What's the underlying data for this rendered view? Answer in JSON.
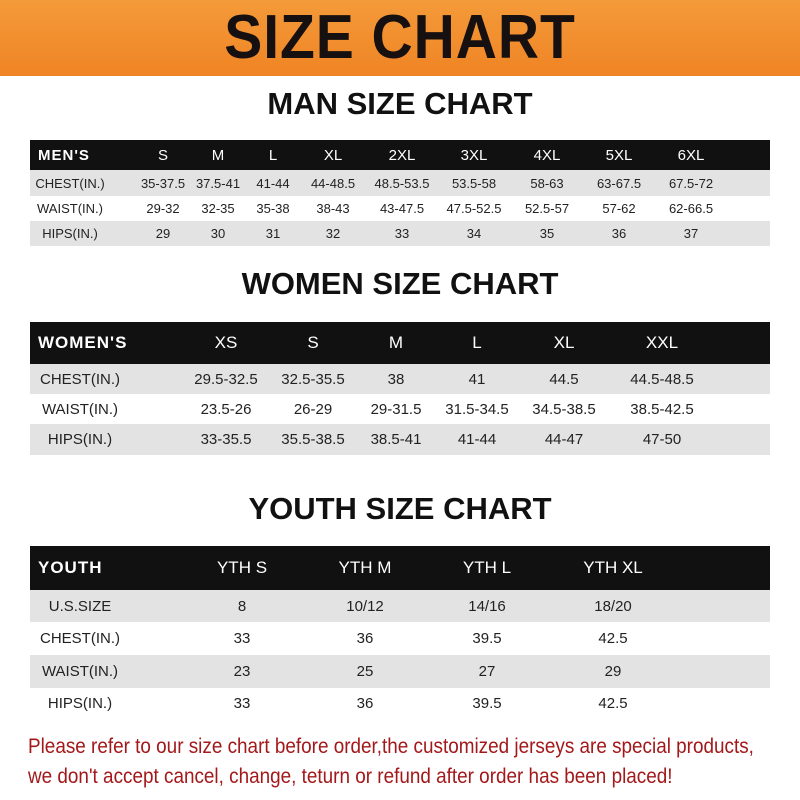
{
  "banner": {
    "title": "SIZE CHART",
    "color": "#ef8a2c"
  },
  "men": {
    "title": "MAN SIZE CHART",
    "header": [
      "MEN'S",
      "S",
      "M",
      "L",
      "XL",
      "2XL",
      "3XL",
      "4XL",
      "5XL",
      "6XL"
    ],
    "rows": [
      [
        "CHEST(IN.)",
        "35-37.5",
        "37.5-41",
        "41-44",
        "44-48.5",
        "48.5-53.5",
        "53.5-58",
        "58-63",
        "63-67.5",
        "67.5-72"
      ],
      [
        "WAIST(IN.)",
        "29-32",
        "32-35",
        "35-38",
        "38-43",
        "43-47.5",
        "47.5-52.5",
        "52.5-57",
        "57-62",
        "62-66.5"
      ],
      [
        "HIPS(IN.)",
        "29",
        "30",
        "31",
        "32",
        "33",
        "34",
        "35",
        "36",
        "37"
      ]
    ]
  },
  "women": {
    "title": "WOMEN SIZE CHART",
    "header": [
      "WOMEN'S",
      "XS",
      "S",
      "M",
      "L",
      "XL",
      "XXL"
    ],
    "rows": [
      [
        "CHEST(IN.)",
        "29.5-32.5",
        "32.5-35.5",
        "38",
        "41",
        "44.5",
        "44.5-48.5"
      ],
      [
        "WAIST(IN.)",
        "23.5-26",
        "26-29",
        "29-31.5",
        "31.5-34.5",
        "34.5-38.5",
        "38.5-42.5"
      ],
      [
        "HIPS(IN.)",
        "33-35.5",
        "35.5-38.5",
        "38.5-41",
        "41-44",
        "44-47",
        "47-50"
      ]
    ]
  },
  "youth": {
    "title": "YOUTH SIZE CHART",
    "header": [
      "YOUTH",
      "YTH S",
      "YTH M",
      "YTH L",
      "YTH XL"
    ],
    "rows": [
      [
        "U.S.SIZE",
        "8",
        "10/12",
        "14/16",
        "18/20"
      ],
      [
        "CHEST(IN.)",
        "33",
        "36",
        "39.5",
        "42.5"
      ],
      [
        "WAIST(IN.)",
        "23",
        "25",
        "27",
        "29"
      ],
      [
        "HIPS(IN.)",
        "33",
        "36",
        "39.5",
        "42.5"
      ]
    ]
  },
  "footer": {
    "line1": "Please refer to our size chart before order,the customized jerseys are special products,",
    "line2": "we don't accept cancel, change, teturn or refund after order has been placed!",
    "color": "#a3191b"
  }
}
